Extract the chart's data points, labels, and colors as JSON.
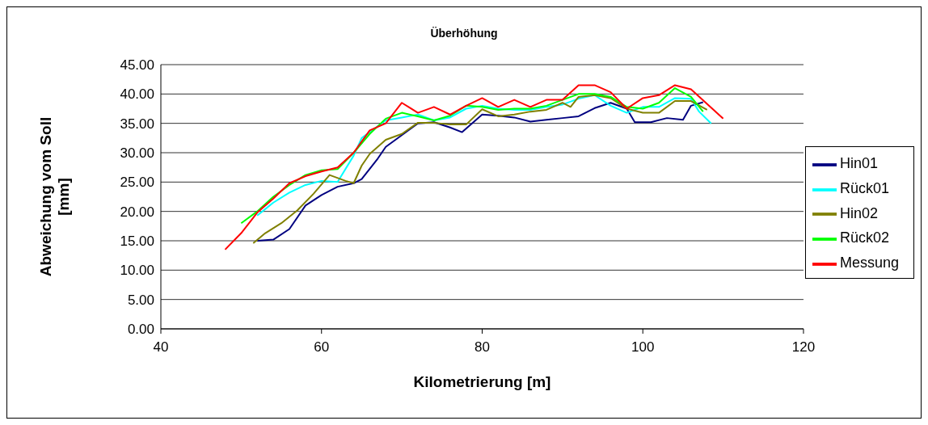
{
  "chart_data": {
    "type": "line",
    "title": "Überhöhung",
    "xlabel": "Kilometrierung [m]",
    "ylabel": "Abweichung vom Soll [mm]",
    "xlim": [
      40,
      120
    ],
    "xticks": [
      40,
      60,
      80,
      100,
      120
    ],
    "ylim": [
      0,
      45
    ],
    "yticks": [
      {
        "value": 0,
        "label": "0.00"
      },
      {
        "value": 5,
        "label": "5.00"
      },
      {
        "value": 10,
        "label": "10.00"
      },
      {
        "value": 15,
        "label": "15.00"
      },
      {
        "value": 20,
        "label": "20.00"
      },
      {
        "value": 25,
        "label": "25.00"
      },
      {
        "value": 30,
        "label": "30.00"
      },
      {
        "value": 35,
        "label": "35.00"
      },
      {
        "value": 40,
        "label": "40.00"
      },
      {
        "value": 45,
        "label": "45.00"
      }
    ],
    "grid": "y",
    "legend": "right",
    "marker": "none",
    "series": [
      {
        "name": "Hin01",
        "color": "#000080",
        "x": [
          52,
          54,
          56,
          58,
          60,
          62,
          64,
          65,
          67,
          68,
          70,
          72,
          74,
          76,
          77.5,
          80,
          82,
          84,
          86,
          88,
          90,
          92,
          94,
          96,
          98,
          99,
          101,
          103,
          105,
          106,
          107.5
        ],
        "values": [
          15.0,
          15.2,
          17,
          21,
          22.8,
          24.2,
          24.8,
          25.5,
          29,
          31,
          33,
          35,
          35.2,
          34.3,
          33.5,
          36.5,
          36.3,
          36,
          35.3,
          35.6,
          35.9,
          36.2,
          37.6,
          38.5,
          37.5,
          35.2,
          35.2,
          35.9,
          35.6,
          38,
          38.6
        ]
      },
      {
        "name": "Rück01",
        "color": "#00ffff",
        "x": [
          52,
          54,
          56,
          58,
          60,
          62,
          64,
          65,
          66,
          68,
          70,
          72,
          74,
          76,
          78,
          80,
          82,
          84,
          86,
          88,
          90,
          92,
          94,
          96,
          98,
          100,
          102,
          104,
          106,
          107,
          108.5
        ],
        "values": [
          19.3,
          21.5,
          23.2,
          24.5,
          25.2,
          25,
          29.5,
          32.5,
          33.5,
          35.5,
          36,
          36.5,
          35.5,
          36,
          37.5,
          38,
          37.5,
          37.3,
          37.3,
          37.8,
          38.2,
          39.2,
          39.8,
          38,
          36.8,
          37.8,
          37.8,
          39.3,
          39.2,
          37,
          35
        ]
      },
      {
        "name": "Hin02",
        "color": "#808000",
        "x": [
          51.5,
          53,
          55,
          57,
          59,
          61,
          63,
          64,
          65,
          66,
          68,
          70,
          72,
          74,
          76,
          78,
          80,
          82,
          84,
          86,
          88,
          90,
          91,
          92,
          94,
          96,
          98,
          100,
          102,
          104,
          106,
          108
        ],
        "values": [
          14.6,
          16.3,
          18,
          20.2,
          23,
          26.2,
          25.2,
          24.8,
          27.8,
          29.8,
          32.2,
          33.2,
          35.1,
          35.1,
          34.8,
          34.8,
          37.4,
          36.2,
          36.5,
          37,
          37.3,
          38.5,
          37.8,
          39.5,
          39.8,
          39.3,
          37.5,
          36.8,
          36.8,
          38.8,
          38.8,
          37.3
        ]
      },
      {
        "name": "Rück02",
        "color": "#00ff00",
        "x": [
          50,
          52,
          54,
          56,
          58,
          60,
          62,
          64,
          66,
          68,
          70,
          72,
          74,
          76,
          78,
          80,
          82,
          84,
          86,
          88,
          90,
          92,
          94,
          96,
          98,
          100,
          102,
          104,
          106,
          107.5
        ],
        "values": [
          18,
          20,
          22.5,
          24.5,
          26.2,
          27,
          27.2,
          30,
          33.2,
          35.8,
          36.8,
          36.2,
          35.5,
          36.3,
          38,
          37.8,
          37.3,
          37.5,
          37.5,
          38,
          39,
          40,
          40,
          39.5,
          37.8,
          37.5,
          38.5,
          41,
          39.5,
          37
        ]
      },
      {
        "name": "Messung",
        "color": "#ff0000",
        "x": [
          48,
          50,
          52,
          54,
          56,
          58,
          60,
          62,
          64,
          66,
          68,
          70,
          72,
          74,
          76,
          78,
          80,
          82,
          84,
          86,
          88,
          90,
          92,
          94,
          96,
          98,
          100,
          102,
          104,
          106,
          110
        ],
        "values": [
          13.5,
          16.3,
          19.8,
          22.2,
          24.8,
          26,
          26.8,
          27.5,
          30,
          33.8,
          35,
          38.5,
          36.8,
          37.8,
          36.5,
          38,
          39.3,
          37.8,
          39,
          37.8,
          39,
          39,
          41.5,
          41.5,
          40.3,
          37.5,
          39.3,
          39.8,
          41.5,
          40.8,
          35.8
        ]
      }
    ]
  }
}
